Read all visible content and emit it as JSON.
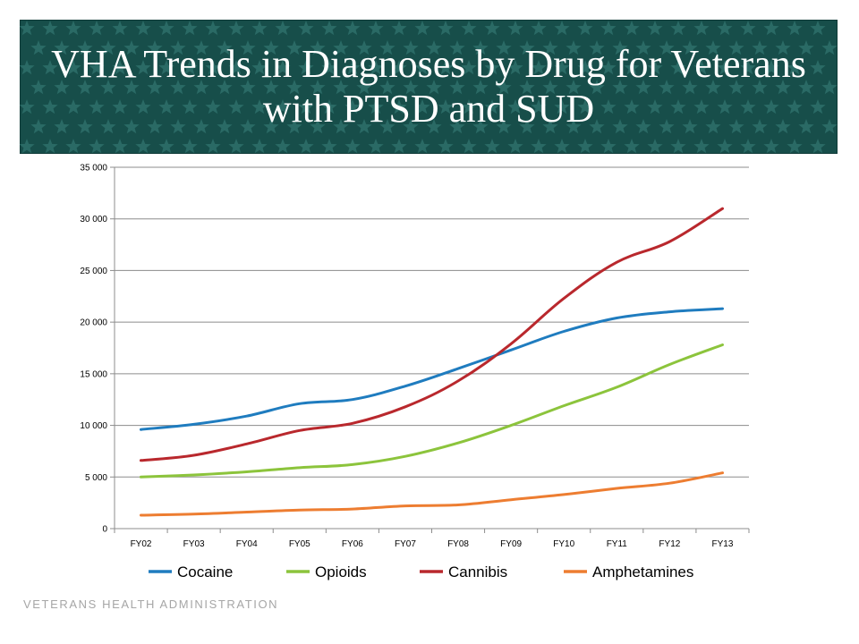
{
  "slide": {
    "title": "VHA Trends in Diagnoses by Drug for Veterans with PTSD and SUD",
    "footer": "VETERANS HEALTH ADMINISTRATION",
    "banner_color": "#174e4a"
  },
  "chart_data": {
    "type": "line",
    "categories": [
      "FY02",
      "FY03",
      "FY04",
      "FY05",
      "FY06",
      "FY07",
      "FY08",
      "FY09",
      "FY10",
      "FY11",
      "FY12",
      "FY13"
    ],
    "ylim": [
      0,
      35000
    ],
    "yticks": [
      0,
      5000,
      10000,
      15000,
      20000,
      25000,
      30000,
      35000
    ],
    "ytick_labels": [
      "0",
      "5 000",
      "10 000",
      "15 000",
      "20 000",
      "25 000",
      "30 000",
      "35 000"
    ],
    "grid": true,
    "legend_position": "bottom",
    "series": [
      {
        "name": "Cocaine",
        "color": "#1f7cbf",
        "values": [
          9600,
          10100,
          10900,
          12100,
          12500,
          13800,
          15500,
          17300,
          19100,
          20400,
          21000,
          21300
        ]
      },
      {
        "name": "Opioids",
        "color": "#8cc43c",
        "values": [
          5000,
          5200,
          5500,
          5900,
          6200,
          7000,
          8300,
          10000,
          11900,
          13700,
          15900,
          17800
        ]
      },
      {
        "name": "Cannibis",
        "color": "#b9282d",
        "values": [
          6600,
          7100,
          8200,
          9500,
          10200,
          11800,
          14300,
          17900,
          22300,
          25800,
          27800,
          31000
        ]
      },
      {
        "name": "Amphetamines",
        "color": "#ed7d31",
        "values": [
          1300,
          1400,
          1600,
          1800,
          1900,
          2200,
          2300,
          2800,
          3300,
          3900,
          4400,
          5400
        ]
      }
    ]
  }
}
